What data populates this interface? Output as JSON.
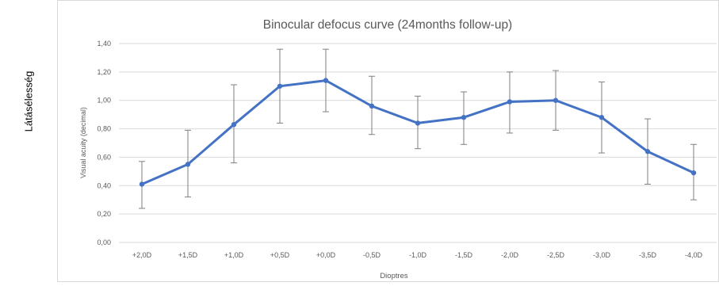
{
  "outer_label": "Látásélesség",
  "chart_data": {
    "type": "line",
    "title": "Binocular defocus curve (24months follow-up)",
    "xlabel": "Dioptres",
    "ylabel": "Visual acuity (decimal)",
    "categories": [
      "+2,0D",
      "+1,5D",
      "+1,0D",
      "+0,5D",
      "+0,0D",
      "-0,5D",
      "-1,0D",
      "-1,5D",
      "-2,0D",
      "-2,5D",
      "-3,0D",
      "-3,5D",
      "-4,0D"
    ],
    "series": [
      {
        "values": [
          0.41,
          0.55,
          0.83,
          1.1,
          1.14,
          0.96,
          0.84,
          0.88,
          0.99,
          1.0,
          0.88,
          0.64,
          0.49
        ],
        "error_low": [
          0.24,
          0.32,
          0.56,
          0.84,
          0.92,
          0.76,
          0.66,
          0.69,
          0.77,
          0.79,
          0.63,
          0.41,
          0.3
        ],
        "error_high": [
          0.57,
          0.79,
          1.11,
          1.36,
          1.36,
          1.17,
          1.03,
          1.06,
          1.2,
          1.21,
          1.13,
          0.87,
          0.69
        ],
        "color": "#4472C4"
      }
    ],
    "yticks": [
      "0,00",
      "0,20",
      "0,40",
      "0,60",
      "0,80",
      "1,00",
      "1,20",
      "1,40"
    ],
    "ylim": [
      0,
      1.4
    ],
    "grid": true,
    "colors": {
      "grid": "#d9d9d9",
      "axis_text": "#595959",
      "error_bar": "#7f7f7f",
      "border": "#d9d9d9"
    }
  }
}
